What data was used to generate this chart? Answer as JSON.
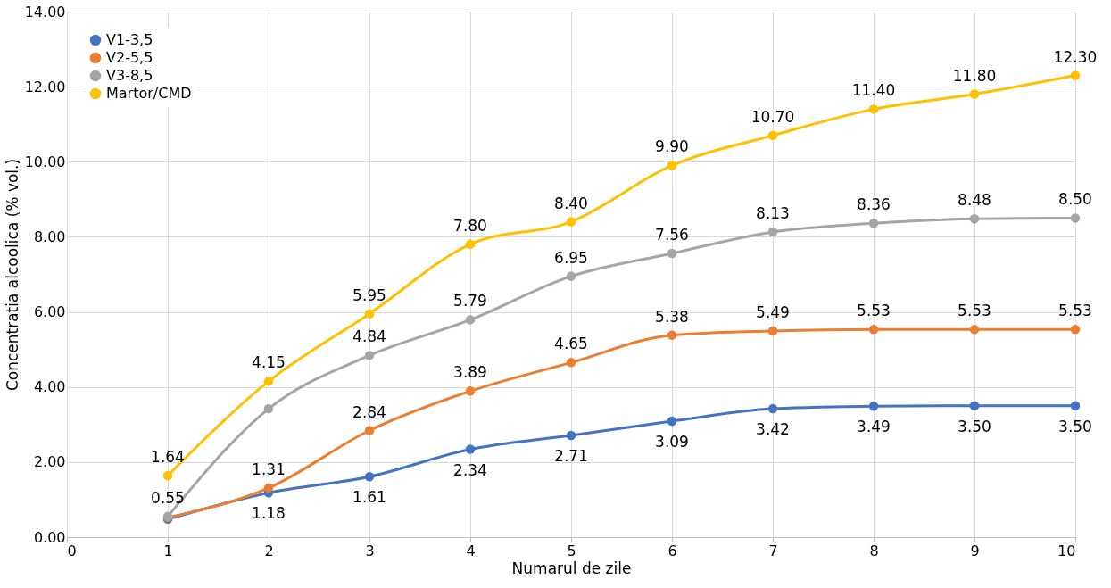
{
  "chart_data": {
    "type": "line",
    "xlabel": "Numarul de zile",
    "ylabel": "Concentratia alcoolica  (% vol.)",
    "x": [
      1,
      2,
      3,
      4,
      5,
      6,
      7,
      8,
      9,
      10
    ],
    "xlim": [
      0,
      10
    ],
    "xticks": [
      0,
      1,
      2,
      3,
      4,
      5,
      6,
      7,
      8,
      9,
      10
    ],
    "ylim": [
      0,
      14
    ],
    "yticks": [
      {
        "value": 0,
        "label": "0.00"
      },
      {
        "value": 2,
        "label": "2.00"
      },
      {
        "value": 4,
        "label": "4.00"
      },
      {
        "value": 6,
        "label": "6.00"
      },
      {
        "value": 8,
        "label": "8.00"
      },
      {
        "value": 10,
        "label": "10.00"
      },
      {
        "value": 12,
        "label": "12.00"
      },
      {
        "value": 14,
        "label": "14.00"
      }
    ],
    "grid": true,
    "legend": "top left",
    "marker": "circle",
    "line_style": "solid",
    "series": [
      {
        "name": "V1-3,5",
        "color": "#4472c4",
        "values": [
          0.48,
          1.18,
          1.61,
          2.34,
          2.71,
          3.09,
          3.42,
          3.49,
          3.5,
          3.5
        ],
        "value_labels": [
          null,
          "1.18",
          "1.61",
          "2.34",
          "2.71",
          "3.09",
          "3.42",
          "3.49",
          "3.50",
          "3.50"
        ]
      },
      {
        "name": "V2-5,5",
        "color": "#ed7d31",
        "values": [
          0.52,
          1.31,
          2.84,
          3.89,
          4.65,
          5.38,
          5.49,
          5.53,
          5.53,
          5.53
        ],
        "value_labels": [
          null,
          "1.31",
          "2.84",
          "3.89",
          "4.65",
          "5.38",
          "5.49",
          "5.53",
          "5.53",
          "5.53"
        ]
      },
      {
        "name": "V3-8,5",
        "color": "#a5a5a5",
        "values": [
          0.55,
          3.42,
          4.84,
          5.79,
          6.95,
          7.56,
          8.13,
          8.36,
          8.48,
          8.5
        ],
        "value_labels": [
          "0.55",
          null,
          "4.84",
          "5.79",
          "6.95",
          "7.56",
          "8.13",
          "8.36",
          "8.48",
          "8.50"
        ]
      },
      {
        "name": "Martor/CMD",
        "color": "#ffc000",
        "values": [
          1.64,
          4.15,
          5.95,
          7.8,
          8.4,
          9.9,
          10.7,
          11.4,
          11.8,
          12.3
        ],
        "value_labels": [
          "1.64",
          "4.15",
          "5.95",
          "7.80",
          "8.40",
          "9.90",
          "10.70",
          "11.40",
          "11.80",
          "12.30"
        ]
      }
    ]
  }
}
